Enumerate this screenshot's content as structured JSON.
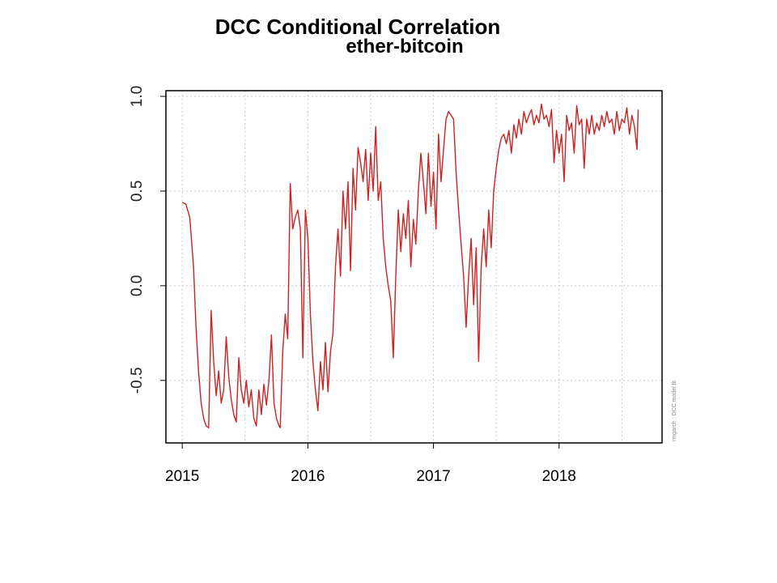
{
  "chart_data": {
    "type": "line",
    "title": "DCC Conditional Correlation",
    "subtitle": "ether-bitcoin",
    "xlabel": "",
    "ylabel": "",
    "xlim": [
      2014.87,
      2018.82
    ],
    "ylim": [
      -0.83,
      1.03
    ],
    "y_ticks": [
      "-0.5",
      "0.0",
      "0.5",
      "1.0"
    ],
    "y_tick_values": [
      -0.5,
      0.0,
      0.5,
      1.0
    ],
    "x_tick_labels": [
      "2015",
      "2016",
      "2017",
      "2018"
    ],
    "x_tick_values": [
      2015,
      2016,
      2017,
      2018
    ],
    "grid": true,
    "footnote": "rmgarch  :  DCC model fit",
    "colors": {
      "line": "#cc2222",
      "grid": "#c8c8c8",
      "axis": "#000000"
    },
    "series": [
      {
        "values": [
          [
            2015.0,
            0.44
          ],
          [
            2015.03,
            0.43
          ],
          [
            2015.06,
            0.36
          ],
          [
            2015.09,
            0.1
          ],
          [
            2015.11,
            -0.22
          ],
          [
            2015.13,
            -0.45
          ],
          [
            2015.15,
            -0.62
          ],
          [
            2015.17,
            -0.7
          ],
          [
            2015.19,
            -0.74
          ],
          [
            2015.21,
            -0.75
          ],
          [
            2015.23,
            -0.13
          ],
          [
            2015.25,
            -0.4
          ],
          [
            2015.27,
            -0.58
          ],
          [
            2015.29,
            -0.45
          ],
          [
            2015.31,
            -0.62
          ],
          [
            2015.33,
            -0.55
          ],
          [
            2015.35,
            -0.27
          ],
          [
            2015.37,
            -0.48
          ],
          [
            2015.39,
            -0.6
          ],
          [
            2015.41,
            -0.68
          ],
          [
            2015.43,
            -0.72
          ],
          [
            2015.45,
            -0.38
          ],
          [
            2015.47,
            -0.55
          ],
          [
            2015.49,
            -0.62
          ],
          [
            2015.51,
            -0.5
          ],
          [
            2015.53,
            -0.64
          ],
          [
            2015.55,
            -0.55
          ],
          [
            2015.57,
            -0.7
          ],
          [
            2015.59,
            -0.74
          ],
          [
            2015.61,
            -0.55
          ],
          [
            2015.63,
            -0.68
          ],
          [
            2015.65,
            -0.52
          ],
          [
            2015.67,
            -0.63
          ],
          [
            2015.69,
            -0.5
          ],
          [
            2015.71,
            -0.26
          ],
          [
            2015.73,
            -0.62
          ],
          [
            2015.75,
            -0.7
          ],
          [
            2015.77,
            -0.74
          ],
          [
            2015.78,
            -0.75
          ],
          [
            2015.8,
            -0.35
          ],
          [
            2015.82,
            -0.15
          ],
          [
            2015.84,
            -0.28
          ],
          [
            2015.86,
            0.54
          ],
          [
            2015.88,
            0.3
          ],
          [
            2015.9,
            0.36
          ],
          [
            2015.92,
            0.4
          ],
          [
            2015.94,
            0.3
          ],
          [
            2015.96,
            -0.38
          ],
          [
            2015.98,
            0.4
          ],
          [
            2016.0,
            0.25
          ],
          [
            2016.02,
            -0.15
          ],
          [
            2016.04,
            -0.4
          ],
          [
            2016.06,
            -0.55
          ],
          [
            2016.08,
            -0.66
          ],
          [
            2016.1,
            -0.4
          ],
          [
            2016.12,
            -0.55
          ],
          [
            2016.14,
            -0.3
          ],
          [
            2016.16,
            -0.56
          ],
          [
            2016.18,
            -0.35
          ],
          [
            2016.2,
            -0.25
          ],
          [
            2016.22,
            0.1
          ],
          [
            2016.24,
            0.3
          ],
          [
            2016.26,
            0.05
          ],
          [
            2016.28,
            0.5
          ],
          [
            2016.3,
            0.3
          ],
          [
            2016.32,
            0.55
          ],
          [
            2016.34,
            0.08
          ],
          [
            2016.36,
            0.62
          ],
          [
            2016.38,
            0.4
          ],
          [
            2016.4,
            0.73
          ],
          [
            2016.42,
            0.65
          ],
          [
            2016.44,
            0.55
          ],
          [
            2016.46,
            0.72
          ],
          [
            2016.48,
            0.45
          ],
          [
            2016.5,
            0.7
          ],
          [
            2016.52,
            0.5
          ],
          [
            2016.54,
            0.84
          ],
          [
            2016.56,
            0.45
          ],
          [
            2016.58,
            0.55
          ],
          [
            2016.6,
            0.25
          ],
          [
            2016.62,
            0.1
          ],
          [
            2016.64,
            0.0
          ],
          [
            2016.66,
            -0.08
          ],
          [
            2016.68,
            -0.38
          ],
          [
            2016.7,
            0.05
          ],
          [
            2016.72,
            0.4
          ],
          [
            2016.74,
            0.18
          ],
          [
            2016.76,
            0.38
          ],
          [
            2016.78,
            0.25
          ],
          [
            2016.8,
            0.45
          ],
          [
            2016.82,
            0.1
          ],
          [
            2016.84,
            0.35
          ],
          [
            2016.86,
            0.22
          ],
          [
            2016.88,
            0.5
          ],
          [
            2016.9,
            0.7
          ],
          [
            2016.92,
            0.55
          ],
          [
            2016.94,
            0.38
          ],
          [
            2016.96,
            0.7
          ],
          [
            2016.98,
            0.42
          ],
          [
            2017.0,
            0.6
          ],
          [
            2017.02,
            0.3
          ],
          [
            2017.04,
            0.8
          ],
          [
            2017.06,
            0.55
          ],
          [
            2017.08,
            0.72
          ],
          [
            2017.1,
            0.88
          ],
          [
            2017.12,
            0.92
          ],
          [
            2017.14,
            0.9
          ],
          [
            2017.16,
            0.88
          ],
          [
            2017.18,
            0.6
          ],
          [
            2017.2,
            0.4
          ],
          [
            2017.22,
            0.22
          ],
          [
            2017.24,
            0.05
          ],
          [
            2017.26,
            -0.22
          ],
          [
            2017.28,
            0.05
          ],
          [
            2017.3,
            0.25
          ],
          [
            2017.32,
            -0.1
          ],
          [
            2017.34,
            0.2
          ],
          [
            2017.36,
            -0.4
          ],
          [
            2017.38,
            0.1
          ],
          [
            2017.4,
            0.3
          ],
          [
            2017.42,
            0.1
          ],
          [
            2017.44,
            0.4
          ],
          [
            2017.46,
            0.2
          ],
          [
            2017.48,
            0.5
          ],
          [
            2017.5,
            0.62
          ],
          [
            2017.52,
            0.72
          ],
          [
            2017.54,
            0.78
          ],
          [
            2017.56,
            0.8
          ],
          [
            2017.58,
            0.75
          ],
          [
            2017.6,
            0.82
          ],
          [
            2017.62,
            0.7
          ],
          [
            2017.64,
            0.85
          ],
          [
            2017.66,
            0.78
          ],
          [
            2017.68,
            0.88
          ],
          [
            2017.7,
            0.8
          ],
          [
            2017.72,
            0.92
          ],
          [
            2017.74,
            0.86
          ],
          [
            2017.76,
            0.9
          ],
          [
            2017.78,
            0.93
          ],
          [
            2017.8,
            0.85
          ],
          [
            2017.82,
            0.9
          ],
          [
            2017.84,
            0.86
          ],
          [
            2017.86,
            0.96
          ],
          [
            2017.88,
            0.88
          ],
          [
            2017.9,
            0.9
          ],
          [
            2017.92,
            0.84
          ],
          [
            2017.94,
            0.93
          ],
          [
            2017.96,
            0.65
          ],
          [
            2017.98,
            0.82
          ],
          [
            2018.0,
            0.7
          ],
          [
            2018.02,
            0.8
          ],
          [
            2018.04,
            0.55
          ],
          [
            2018.06,
            0.9
          ],
          [
            2018.08,
            0.82
          ],
          [
            2018.1,
            0.86
          ],
          [
            2018.12,
            0.7
          ],
          [
            2018.14,
            0.95
          ],
          [
            2018.16,
            0.85
          ],
          [
            2018.18,
            0.88
          ],
          [
            2018.2,
            0.62
          ],
          [
            2018.22,
            0.88
          ],
          [
            2018.24,
            0.8
          ],
          [
            2018.26,
            0.9
          ],
          [
            2018.28,
            0.8
          ],
          [
            2018.3,
            0.86
          ],
          [
            2018.32,
            0.82
          ],
          [
            2018.34,
            0.9
          ],
          [
            2018.36,
            0.84
          ],
          [
            2018.38,
            0.92
          ],
          [
            2018.4,
            0.86
          ],
          [
            2018.42,
            0.88
          ],
          [
            2018.44,
            0.8
          ],
          [
            2018.46,
            0.92
          ],
          [
            2018.48,
            0.82
          ],
          [
            2018.5,
            0.88
          ],
          [
            2018.52,
            0.86
          ],
          [
            2018.54,
            0.94
          ],
          [
            2018.56,
            0.8
          ],
          [
            2018.58,
            0.9
          ],
          [
            2018.6,
            0.84
          ],
          [
            2018.62,
            0.72
          ],
          [
            2018.63,
            0.93
          ]
        ]
      }
    ]
  }
}
